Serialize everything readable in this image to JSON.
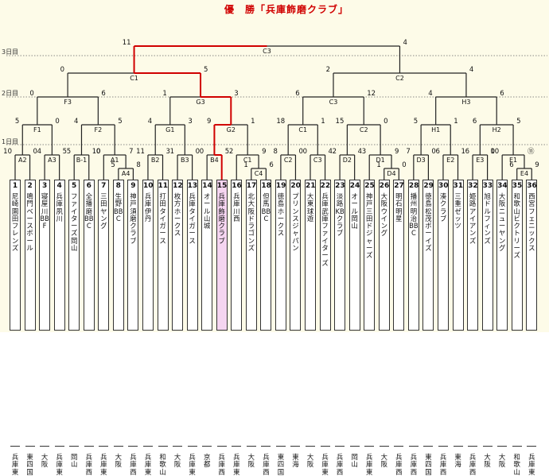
{
  "title": "優　勝「兵庫飾磨クラブ」",
  "rounds": [
    "3日目",
    "2日目",
    "1日目"
  ],
  "colors": {
    "winner_path": "#d00000",
    "line": "#222222",
    "highlight_bg": "#f5d5f0",
    "background": "#fdfbe8",
    "title": "#d00000"
  },
  "teams": [
    {
      "num": "1",
      "name": "尼崎園田フレンズ",
      "region": "兵庫東"
    },
    {
      "num": "2",
      "name": "鳴門ベースボール",
      "region": "東四国"
    },
    {
      "num": "3",
      "name": "寝屋川BBF",
      "region": "大阪"
    },
    {
      "num": "4",
      "name": "兵庫夙川",
      "region": "兵庫東"
    },
    {
      "num": "5",
      "name": "ファイターズ岡山",
      "region": "岡山"
    },
    {
      "num": "6",
      "name": "全播磨BBC",
      "region": "兵庫西"
    },
    {
      "num": "7",
      "name": "三田ヤング",
      "region": "兵庫東"
    },
    {
      "num": "8",
      "name": "生野BBC",
      "region": "大阪"
    },
    {
      "num": "9",
      "name": "神戸須磨クラブ",
      "region": "兵庫西"
    },
    {
      "num": "10",
      "name": "兵庫伊丹",
      "region": "兵庫東"
    },
    {
      "num": "11",
      "name": "打田タイガース",
      "region": "和歌山"
    },
    {
      "num": "12",
      "name": "枚方ホークス",
      "region": "大阪"
    },
    {
      "num": "13",
      "name": "兵庫タイガース",
      "region": "兵庫東"
    },
    {
      "num": "14",
      "name": "オール山城",
      "region": "京都"
    },
    {
      "num": "15",
      "name": "兵庫飾磨クラブ",
      "region": "兵庫西"
    },
    {
      "num": "16",
      "name": "兵庫川西",
      "region": "兵庫東"
    },
    {
      "num": "17",
      "name": "北大阪ドラゴンズ",
      "region": "大阪"
    },
    {
      "num": "18",
      "name": "但馬BBC",
      "region": "兵庫西"
    },
    {
      "num": "19",
      "name": "徳島ホークス",
      "region": "東四国"
    },
    {
      "num": "20",
      "name": "プリンスジャパン",
      "region": "東海"
    },
    {
      "num": "21",
      "name": "大東球遊",
      "region": "大阪"
    },
    {
      "num": "22",
      "name": "兵庫武庫ファイターズ",
      "region": "兵庫東"
    },
    {
      "num": "23",
      "name": "淡路KBクラブ",
      "region": "兵庫西"
    },
    {
      "num": "24",
      "name": "オール岡山",
      "region": "岡山"
    },
    {
      "num": "25",
      "name": "神戸三田ドジャーズ",
      "region": "兵庫東"
    },
    {
      "num": "26",
      "name": "大阪ウイング",
      "region": "大阪"
    },
    {
      "num": "27",
      "name": "明石明星",
      "region": "兵庫西"
    },
    {
      "num": "28",
      "name": "播州明治BBC",
      "region": "兵庫西"
    },
    {
      "num": "29",
      "name": "徳島松茂ボーイズ",
      "region": "東四国"
    },
    {
      "num": "30",
      "name": "湊クラブ",
      "region": "兵庫西"
    },
    {
      "num": "31",
      "name": "三重ゼッツ",
      "region": "東海"
    },
    {
      "num": "32",
      "name": "姫路アイアンズ",
      "region": "兵庫西"
    },
    {
      "num": "33",
      "name": "旭ドルフィンズ",
      "region": "大阪"
    },
    {
      "num": "34",
      "name": "大阪ニューヤング",
      "region": "大阪"
    },
    {
      "num": "35",
      "name": "和歌山ビクトリーズ",
      "region": "和歌山"
    },
    {
      "num": "36",
      "name": "西宮フェニックス",
      "region": "兵庫東"
    }
  ],
  "matches": [
    {
      "id": "A2",
      "l": "10",
      "r": "0"
    },
    {
      "id": "A3",
      "l": "4",
      "r": "5"
    },
    {
      "id": "B-1",
      "l": "5",
      "r": "10"
    },
    {
      "id": "A4",
      "l": "5",
      "r": "8"
    },
    {
      "id": "A1",
      "l": "0",
      "r": "7"
    },
    {
      "id": "B2",
      "l": "11",
      "r": "3"
    },
    {
      "id": "B3",
      "l": "1",
      "r": "0"
    },
    {
      "id": "B4",
      "l": "0",
      "r": "5"
    },
    {
      "id": "C4",
      "l": "1",
      "r": "6"
    },
    {
      "id": "C1",
      "l": "2",
      "r": "9"
    },
    {
      "id": "C2",
      "l": "8",
      "r": "0"
    },
    {
      "id": "C3",
      "l": "0",
      "r": "4"
    },
    {
      "id": "D2",
      "l": "2",
      "r": "4"
    },
    {
      "id": "D4",
      "l": "1",
      "r": "0"
    },
    {
      "id": "D1",
      "l": "3",
      "r": "9"
    },
    {
      "id": "D3",
      "l": "7",
      "r": "0"
    },
    {
      "id": "E2",
      "l": "6",
      "r": "1"
    },
    {
      "id": "E3",
      "l": "6",
      "r": "0"
    },
    {
      "id": "E4",
      "l": "6",
      "r": "9"
    },
    {
      "id": "E1",
      "l": "10",
      "r": "⑪"
    },
    {
      "id": "F1",
      "l": "5",
      "r": "0"
    },
    {
      "id": "F2",
      "l": "4",
      "r": "5"
    },
    {
      "id": "G1",
      "l": "4",
      "r": "3"
    },
    {
      "id": "G2",
      "l": "9",
      "r": "1"
    },
    {
      "id": "C1",
      "l": "18",
      "r": "1"
    },
    {
      "id": "C2",
      "l": "15",
      "r": "0"
    },
    {
      "id": "H1",
      "l": "5",
      "r": "1"
    },
    {
      "id": "H2",
      "l": "6",
      "r": "5"
    },
    {
      "id": "F3",
      "l": "0",
      "r": "6"
    },
    {
      "id": "G3",
      "l": "1",
      "r": "3"
    },
    {
      "id": "C3",
      "l": "6",
      "r": "12"
    },
    {
      "id": "H3",
      "l": "4",
      "r": "6"
    },
    {
      "id": "C1",
      "l": "0",
      "r": "5"
    },
    {
      "id": "C2",
      "l": "2",
      "r": "4"
    },
    {
      "id": "C3",
      "l": "11",
      "r": "4"
    }
  ]
}
